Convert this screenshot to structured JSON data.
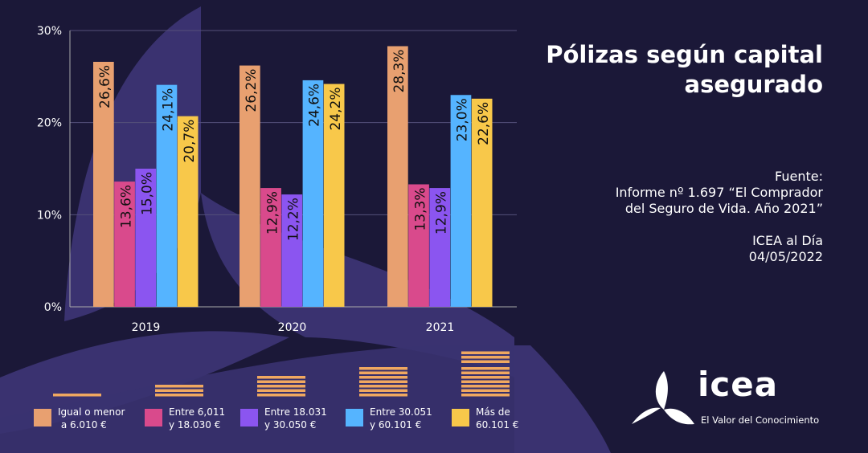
{
  "title": "Pólizas según capital asegurado",
  "source": {
    "label": "Fuente:",
    "line1": "Informe nº 1.697 “El Comprador",
    "line2": "del Seguro de Vida. Año 2021”",
    "publisher": "ICEA al Día",
    "date": "04/05/2022"
  },
  "logo": {
    "word": "icea",
    "tagline": "El Valor del Conocimiento"
  },
  "chart_data": {
    "type": "bar",
    "title": "Pólizas según capital asegurado",
    "categories": [
      "2019",
      "2020",
      "2021"
    ],
    "ylim": [
      0,
      30
    ],
    "yticks": [
      "0%",
      "10%",
      "20%",
      "30%"
    ],
    "grid": true,
    "legend_placement": "bottom",
    "series": [
      {
        "name": "Igual o menor\n a 6.010 €",
        "color": "#e8a070",
        "values": [
          26.6,
          26.2,
          28.3
        ],
        "labels": [
          "26,6%",
          "26,2%",
          "28,3%"
        ]
      },
      {
        "name": "Entre 6,011\ny 18.030 €",
        "color": "#d94a8c",
        "values": [
          13.6,
          12.9,
          13.3
        ],
        "labels": [
          "13,6%",
          "12,9%",
          "13,3%"
        ]
      },
      {
        "name": "Entre 18.031\ny 30.050 €",
        "color": "#8b55f0",
        "values": [
          15.0,
          12.2,
          12.9
        ],
        "labels": [
          "15,0%",
          "12,2%",
          "12,9%"
        ]
      },
      {
        "name": "Entre 30.051\ny 60.101 €",
        "color": "#55b4ff",
        "values": [
          24.1,
          24.6,
          23.0
        ],
        "labels": [
          "24,1%",
          "24,6%",
          "23,0%"
        ]
      },
      {
        "name": "Más de\n60.101 €",
        "color": "#f8c84a",
        "values": [
          20.7,
          24.2,
          22.6
        ],
        "labels": [
          "20,7%",
          "24,2%",
          "22,6%"
        ]
      }
    ]
  }
}
